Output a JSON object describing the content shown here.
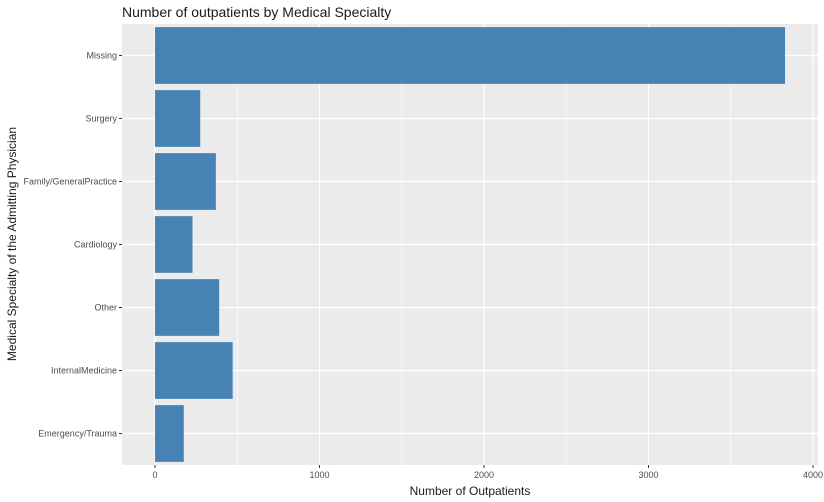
{
  "chart_data": {
    "type": "bar",
    "orientation": "horizontal",
    "title": "Number of outpatients by Medical Specialty",
    "xlabel": "Number of Outpatients",
    "ylabel": "Medical Specialty of the Admitting Physician",
    "categories": [
      "Missing",
      "Surgery",
      "Family/GeneralPractice",
      "Cardiology",
      "Other",
      "InternalMedicine",
      "Emergency/Trauma"
    ],
    "values": [
      3830,
      275,
      370,
      228,
      390,
      472,
      175
    ],
    "xlim": [
      0,
      4000
    ],
    "xticks": [
      0,
      1000,
      2000,
      3000,
      4000
    ],
    "grid": true,
    "bar_color": "#4682B4",
    "panel_color": "#EBEBEB",
    "grid_color": "#FFFFFF"
  }
}
